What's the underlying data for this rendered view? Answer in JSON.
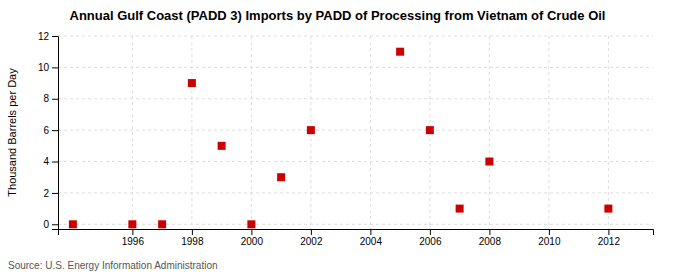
{
  "chart_data": {
    "type": "scatter",
    "title": "Annual Gulf Coast (PADD 3) Imports by PADD of Processing from Vietnam of Crude Oil",
    "y_label": "Thousand Barrels per Day",
    "annotations": [
      "Source: U.S. Energy Information Administration"
    ],
    "x": [
      1994,
      1996,
      1997,
      1998,
      1999,
      2000,
      2001,
      2002,
      2005,
      2006,
      2007,
      2008,
      2012
    ],
    "values": [
      0,
      0,
      0,
      9,
      5,
      0,
      3,
      6,
      11,
      6,
      1,
      4,
      1
    ],
    "color": "#cc0000",
    "marker": "square",
    "xlim": [
      1993.5,
      2013.5
    ],
    "ylim": [
      -0.3,
      12
    ],
    "xticks": [
      1996,
      1998,
      2000,
      2002,
      2004,
      2006,
      2008,
      2010,
      2012
    ],
    "yticks": [
      0,
      2,
      4,
      6,
      8,
      10,
      12
    ],
    "grid": true
  }
}
